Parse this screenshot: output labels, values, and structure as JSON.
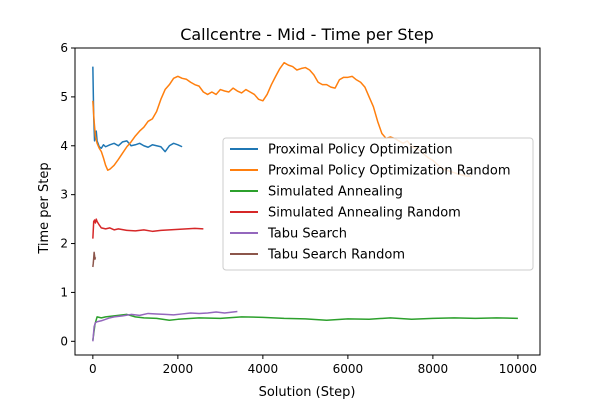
{
  "chart_data": {
    "type": "line",
    "title": "Callcentre - Mid - Time per Step",
    "xlabel": "Solution (Step)",
    "ylabel": "Time per Step",
    "xlim": [
      -420,
      10520
    ],
    "ylim": [
      -0.28,
      6.0
    ],
    "xticks": [
      0,
      2000,
      4000,
      6000,
      8000,
      10000
    ],
    "yticks": [
      0,
      1,
      2,
      3,
      4,
      5,
      6
    ],
    "grid": false,
    "legend_position": "center-right",
    "series": [
      {
        "name": "Proximal Policy Optimization",
        "color": "#1f77b4",
        "x": [
          0,
          20,
          40,
          60,
          80,
          100,
          150,
          200,
          250,
          300,
          400,
          500,
          600,
          700,
          800,
          900,
          1000,
          1100,
          1200,
          1300,
          1400,
          1500,
          1600,
          1700,
          1800,
          1900,
          2000,
          2100
        ],
        "y": [
          5.62,
          4.6,
          4.1,
          4.25,
          4.3,
          4.1,
          3.98,
          3.95,
          4.02,
          3.98,
          4.02,
          4.05,
          4.0,
          4.08,
          4.1,
          4.0,
          4.02,
          4.05,
          4.0,
          3.97,
          4.02,
          4.0,
          3.98,
          3.88,
          4.0,
          4.05,
          4.02,
          3.98
        ]
      },
      {
        "name": "Proximal Policy Optimization Random",
        "color": "#ff7f0e",
        "x": [
          0,
          30,
          60,
          100,
          150,
          200,
          250,
          300,
          350,
          400,
          500,
          600,
          700,
          800,
          900,
          1000,
          1100,
          1200,
          1300,
          1400,
          1500,
          1600,
          1700,
          1800,
          1900,
          2000,
          2100,
          2200,
          2300,
          2400,
          2500,
          2600,
          2700,
          2800,
          2900,
          3000,
          3100,
          3200,
          3300,
          3400,
          3500,
          3600,
          3700,
          3800,
          3900,
          4000,
          4100,
          4200,
          4300,
          4400,
          4500,
          4600,
          4700,
          4800,
          4900,
          5000,
          5100,
          5200,
          5300,
          5400,
          5500,
          5600,
          5700,
          5800,
          5900,
          6000,
          6100,
          6200,
          6300,
          6400,
          6500,
          6600,
          6700,
          6800,
          6900,
          7000,
          7100,
          7200,
          7300,
          7400,
          7500,
          7600,
          7700,
          7800,
          7900,
          8000,
          8100,
          8200,
          8300,
          8400,
          8500,
          8600,
          8700,
          8800,
          8900
        ],
        "y": [
          4.92,
          4.5,
          4.2,
          4.05,
          3.95,
          3.88,
          3.75,
          3.6,
          3.5,
          3.52,
          3.6,
          3.72,
          3.85,
          3.98,
          4.08,
          4.2,
          4.3,
          4.38,
          4.5,
          4.55,
          4.7,
          4.95,
          5.15,
          5.25,
          5.38,
          5.42,
          5.38,
          5.36,
          5.3,
          5.25,
          5.22,
          5.1,
          5.05,
          5.1,
          5.05,
          5.15,
          5.12,
          5.1,
          5.18,
          5.12,
          5.08,
          5.15,
          5.1,
          5.05,
          4.95,
          4.92,
          5.05,
          5.25,
          5.42,
          5.58,
          5.7,
          5.65,
          5.62,
          5.55,
          5.58,
          5.6,
          5.55,
          5.45,
          5.3,
          5.25,
          5.25,
          5.2,
          5.18,
          5.35,
          5.4,
          5.4,
          5.42,
          5.35,
          5.3,
          5.2,
          5.0,
          4.8,
          4.5,
          4.25,
          4.15,
          4.18,
          4.15,
          4.1,
          4.05,
          4.1,
          3.98,
          3.95,
          3.9,
          3.82,
          3.75,
          3.7,
          3.62,
          3.55,
          3.5,
          3.48,
          3.45,
          3.42,
          3.4,
          3.38,
          3.38
        ]
      },
      {
        "name": "Simulated Annealing",
        "color": "#2ca02c",
        "x": [
          0,
          50,
          100,
          200,
          300,
          500,
          800,
          1000,
          1200,
          1500,
          1800,
          2000,
          2500,
          3000,
          3500,
          4000,
          4500,
          5000,
          5500,
          6000,
          6500,
          7000,
          7500,
          8000,
          8500,
          9000,
          9500,
          10000
        ],
        "y": [
          0.02,
          0.35,
          0.5,
          0.48,
          0.5,
          0.52,
          0.55,
          0.5,
          0.48,
          0.47,
          0.43,
          0.45,
          0.48,
          0.47,
          0.5,
          0.49,
          0.47,
          0.46,
          0.43,
          0.46,
          0.45,
          0.48,
          0.45,
          0.47,
          0.48,
          0.47,
          0.48,
          0.47
        ]
      },
      {
        "name": "Simulated Annealing Random",
        "color": "#d62728",
        "x": [
          0,
          20,
          40,
          60,
          80,
          100,
          150,
          200,
          300,
          400,
          500,
          600,
          800,
          1000,
          1200,
          1400,
          1600,
          1800,
          2000,
          2200,
          2400,
          2600
        ],
        "y": [
          2.1,
          2.45,
          2.48,
          2.42,
          2.5,
          2.45,
          2.38,
          2.32,
          2.3,
          2.32,
          2.28,
          2.3,
          2.27,
          2.26,
          2.28,
          2.25,
          2.27,
          2.28,
          2.29,
          2.3,
          2.31,
          2.3
        ]
      },
      {
        "name": "Tabu Search",
        "color": "#9467bd",
        "x": [
          0,
          30,
          60,
          100,
          200,
          300,
          400,
          500,
          700,
          900,
          1100,
          1300,
          1500,
          1700,
          1900,
          2100,
          2300,
          2500,
          2700,
          2900,
          3100,
          3300,
          3400
        ],
        "y": [
          0.0,
          0.3,
          0.38,
          0.4,
          0.42,
          0.45,
          0.48,
          0.5,
          0.52,
          0.55,
          0.53,
          0.57,
          0.56,
          0.55,
          0.54,
          0.56,
          0.58,
          0.57,
          0.58,
          0.6,
          0.58,
          0.6,
          0.61
        ]
      },
      {
        "name": "Tabu Search Random",
        "color": "#8c564b",
        "x": [
          0,
          10,
          20,
          30,
          40,
          50,
          60
        ],
        "y": [
          1.52,
          1.6,
          1.7,
          1.82,
          1.75,
          1.68,
          1.72
        ]
      }
    ]
  }
}
